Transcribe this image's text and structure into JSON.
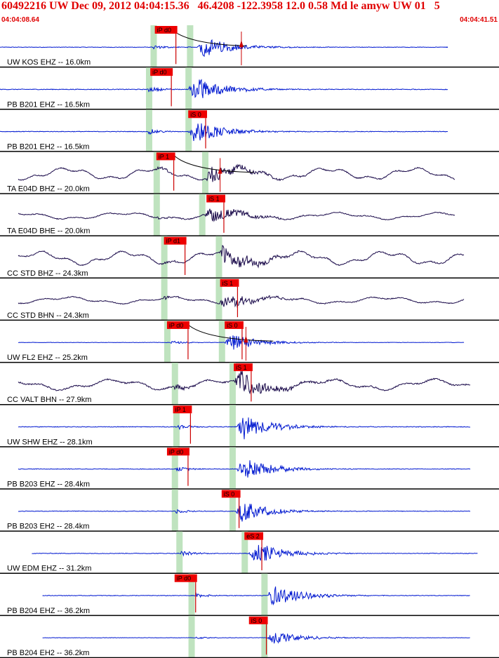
{
  "header": {
    "title": "60492216 UW Dec 09, 2012 04:04:15.36   46.4208 -122.3958 12.0 0.58 Md le amyw UW 01   5",
    "start_time": "04:04:08.64",
    "end_time": "04:04:41.51"
  },
  "colors": {
    "title_red": "#e00000",
    "short_period": "#0018d0",
    "broadband": "#1a0a4a",
    "pick_box": "#ee0000",
    "pick_marker": "#cc0000",
    "window_band": "#bfe3bf",
    "divider": "#000000"
  },
  "chart_data": {
    "type": "line",
    "title": "60492216 UW Dec 09, 2012 04:04:15.36   46.4208 -122.3958 12.0 0.58 Md le amyw UW 01   5",
    "x_start": "04:04:08.64",
    "x_end": "04:04:41.51",
    "traces": [
      {
        "label": "UW KOS EHZ -- 16.0km",
        "kind": "sp",
        "picks": [
          {
            "label": "iP d0",
            "t": 10.2
          }
        ],
        "p_window": 10.1,
        "s_window": 12.5,
        "onset": 10.1,
        "s_onset": 13.0,
        "amp": 0.45,
        "extra_marker": 15.9,
        "has_curve": true,
        "start": 0.0,
        "end": 29.5
      },
      {
        "label": "PB B201 EHZ -- 16.5km",
        "kind": "sp",
        "picks": [
          {
            "label": "iP d0",
            "t": 9.9
          }
        ],
        "p_window": 9.8,
        "s_window": 12.4,
        "onset": 9.8,
        "s_onset": 12.4,
        "amp": 0.55,
        "start": 0.0,
        "end": 29.5
      },
      {
        "label": "PB B201 EH2 -- 16.5km",
        "kind": "sp",
        "picks": [
          {
            "label": "iS 0",
            "t": 12.4
          }
        ],
        "p_window": 9.8,
        "s_window": 12.4,
        "onset": 9.8,
        "s_onset": 12.4,
        "amp": 0.5,
        "start": 0.0,
        "end": 29.5
      },
      {
        "label": "TA E04D BHZ -- 20.0km",
        "kind": "bbz",
        "picks": [
          {
            "label": "iP 1",
            "t": 10.3
          }
        ],
        "p_window": 10.3,
        "s_window": 13.5,
        "onset": 10.3,
        "s_onset": 13.5,
        "amp": 0.4,
        "has_curve": true,
        "extra_marker": 14.5,
        "start": 1.2,
        "end": 30.0
      },
      {
        "label": "TA E04D BHE -- 20.0km",
        "kind": "bbh",
        "picks": [
          {
            "label": "iS 1",
            "t": 13.6
          }
        ],
        "p_window": 10.3,
        "s_window": 13.3,
        "onset": 10.3,
        "s_onset": 13.4,
        "amp": 0.35,
        "start": 1.2,
        "end": 30.0
      },
      {
        "label": "CC STD BHZ -- 24.3km",
        "kind": "bbz",
        "picks": [
          {
            "label": "iP d1",
            "t": 10.8
          }
        ],
        "p_window": 10.8,
        "s_window": 14.4,
        "onset": 10.8,
        "s_onset": 14.4,
        "amp": 0.45,
        "start": 1.2,
        "end": 30.6
      },
      {
        "label": "CC STD BHN -- 24.3km",
        "kind": "bbh",
        "picks": [
          {
            "label": "iS 1",
            "t": 14.5
          }
        ],
        "p_window": 10.8,
        "s_window": 14.4,
        "onset": 10.8,
        "s_onset": 14.4,
        "amp": 0.35,
        "start": 1.2,
        "end": 30.6
      },
      {
        "label": "UW FL2 EHZ -- 25.2km",
        "kind": "sp",
        "picks": [
          {
            "label": "iP d0",
            "t": 11.0
          },
          {
            "label": "iS 0",
            "t": 14.8
          }
        ],
        "p_window": 11.0,
        "s_window": 14.6,
        "onset": 11.2,
        "s_onset": 14.8,
        "amp": 0.35,
        "has_curve": true,
        "extra_marker": 16.2,
        "start": 1.2,
        "end": 30.6
      },
      {
        "label": "CC VALT BHN -- 27.9km",
        "kind": "bbh",
        "picks": [
          {
            "label": "iS 1",
            "t": 15.4
          }
        ],
        "p_window": 11.5,
        "s_window": 15.3,
        "onset": 11.5,
        "s_onset": 15.4,
        "amp": 0.55,
        "start": 1.2,
        "end": 31.0
      },
      {
        "label": "UW SHW EHZ -- 28.1km",
        "kind": "sp",
        "picks": [
          {
            "label": "iP 1",
            "t": 11.4
          }
        ],
        "p_window": 11.6,
        "s_window": 15.3,
        "onset": 11.6,
        "s_onset": 15.6,
        "amp": 0.55,
        "start": 1.2,
        "end": 31.0
      },
      {
        "label": "PB B203 EHZ -- 28.4km",
        "kind": "sp",
        "picks": [
          {
            "label": "iP d0",
            "t": 11.0
          }
        ],
        "p_window": 11.5,
        "s_window": 15.3,
        "onset": 11.6,
        "s_onset": 15.6,
        "amp": 0.5,
        "start": 1.2,
        "end": 31.0
      },
      {
        "label": "PB B203 EH2 -- 28.4km",
        "kind": "sp",
        "picks": [
          {
            "label": "iS 0",
            "t": 14.6
          }
        ],
        "p_window": 11.5,
        "s_window": 15.3,
        "onset": 11.6,
        "s_onset": 15.5,
        "amp": 0.45,
        "start": 1.2,
        "end": 31.0
      },
      {
        "label": "UW EDM EHZ -- 31.2km",
        "kind": "sp",
        "picks": [
          {
            "label": "eS 2",
            "t": 16.1
          }
        ],
        "p_window": 11.8,
        "s_window": 16.1,
        "onset": 11.9,
        "s_onset": 16.4,
        "amp": 0.5,
        "start": 2.1,
        "end": 31.5
      },
      {
        "label": "PB B204 EHZ -- 36.2km",
        "kind": "sp",
        "picks": [
          {
            "label": "iP d0",
            "t": 11.5
          }
        ],
        "p_window": 12.6,
        "s_window": 17.4,
        "onset": 12.8,
        "s_onset": 17.6,
        "amp": 0.45,
        "start": 2.8,
        "end": 31.0
      },
      {
        "label": "PB B204 EH2 -- 36.2km",
        "kind": "sp",
        "picks": [
          {
            "label": "iS 0",
            "t": 16.4
          }
        ],
        "p_window": 12.6,
        "s_window": 17.4,
        "onset": 12.8,
        "s_onset": 17.6,
        "amp": 0.3,
        "start": 2.8,
        "end": 31.0
      }
    ]
  }
}
